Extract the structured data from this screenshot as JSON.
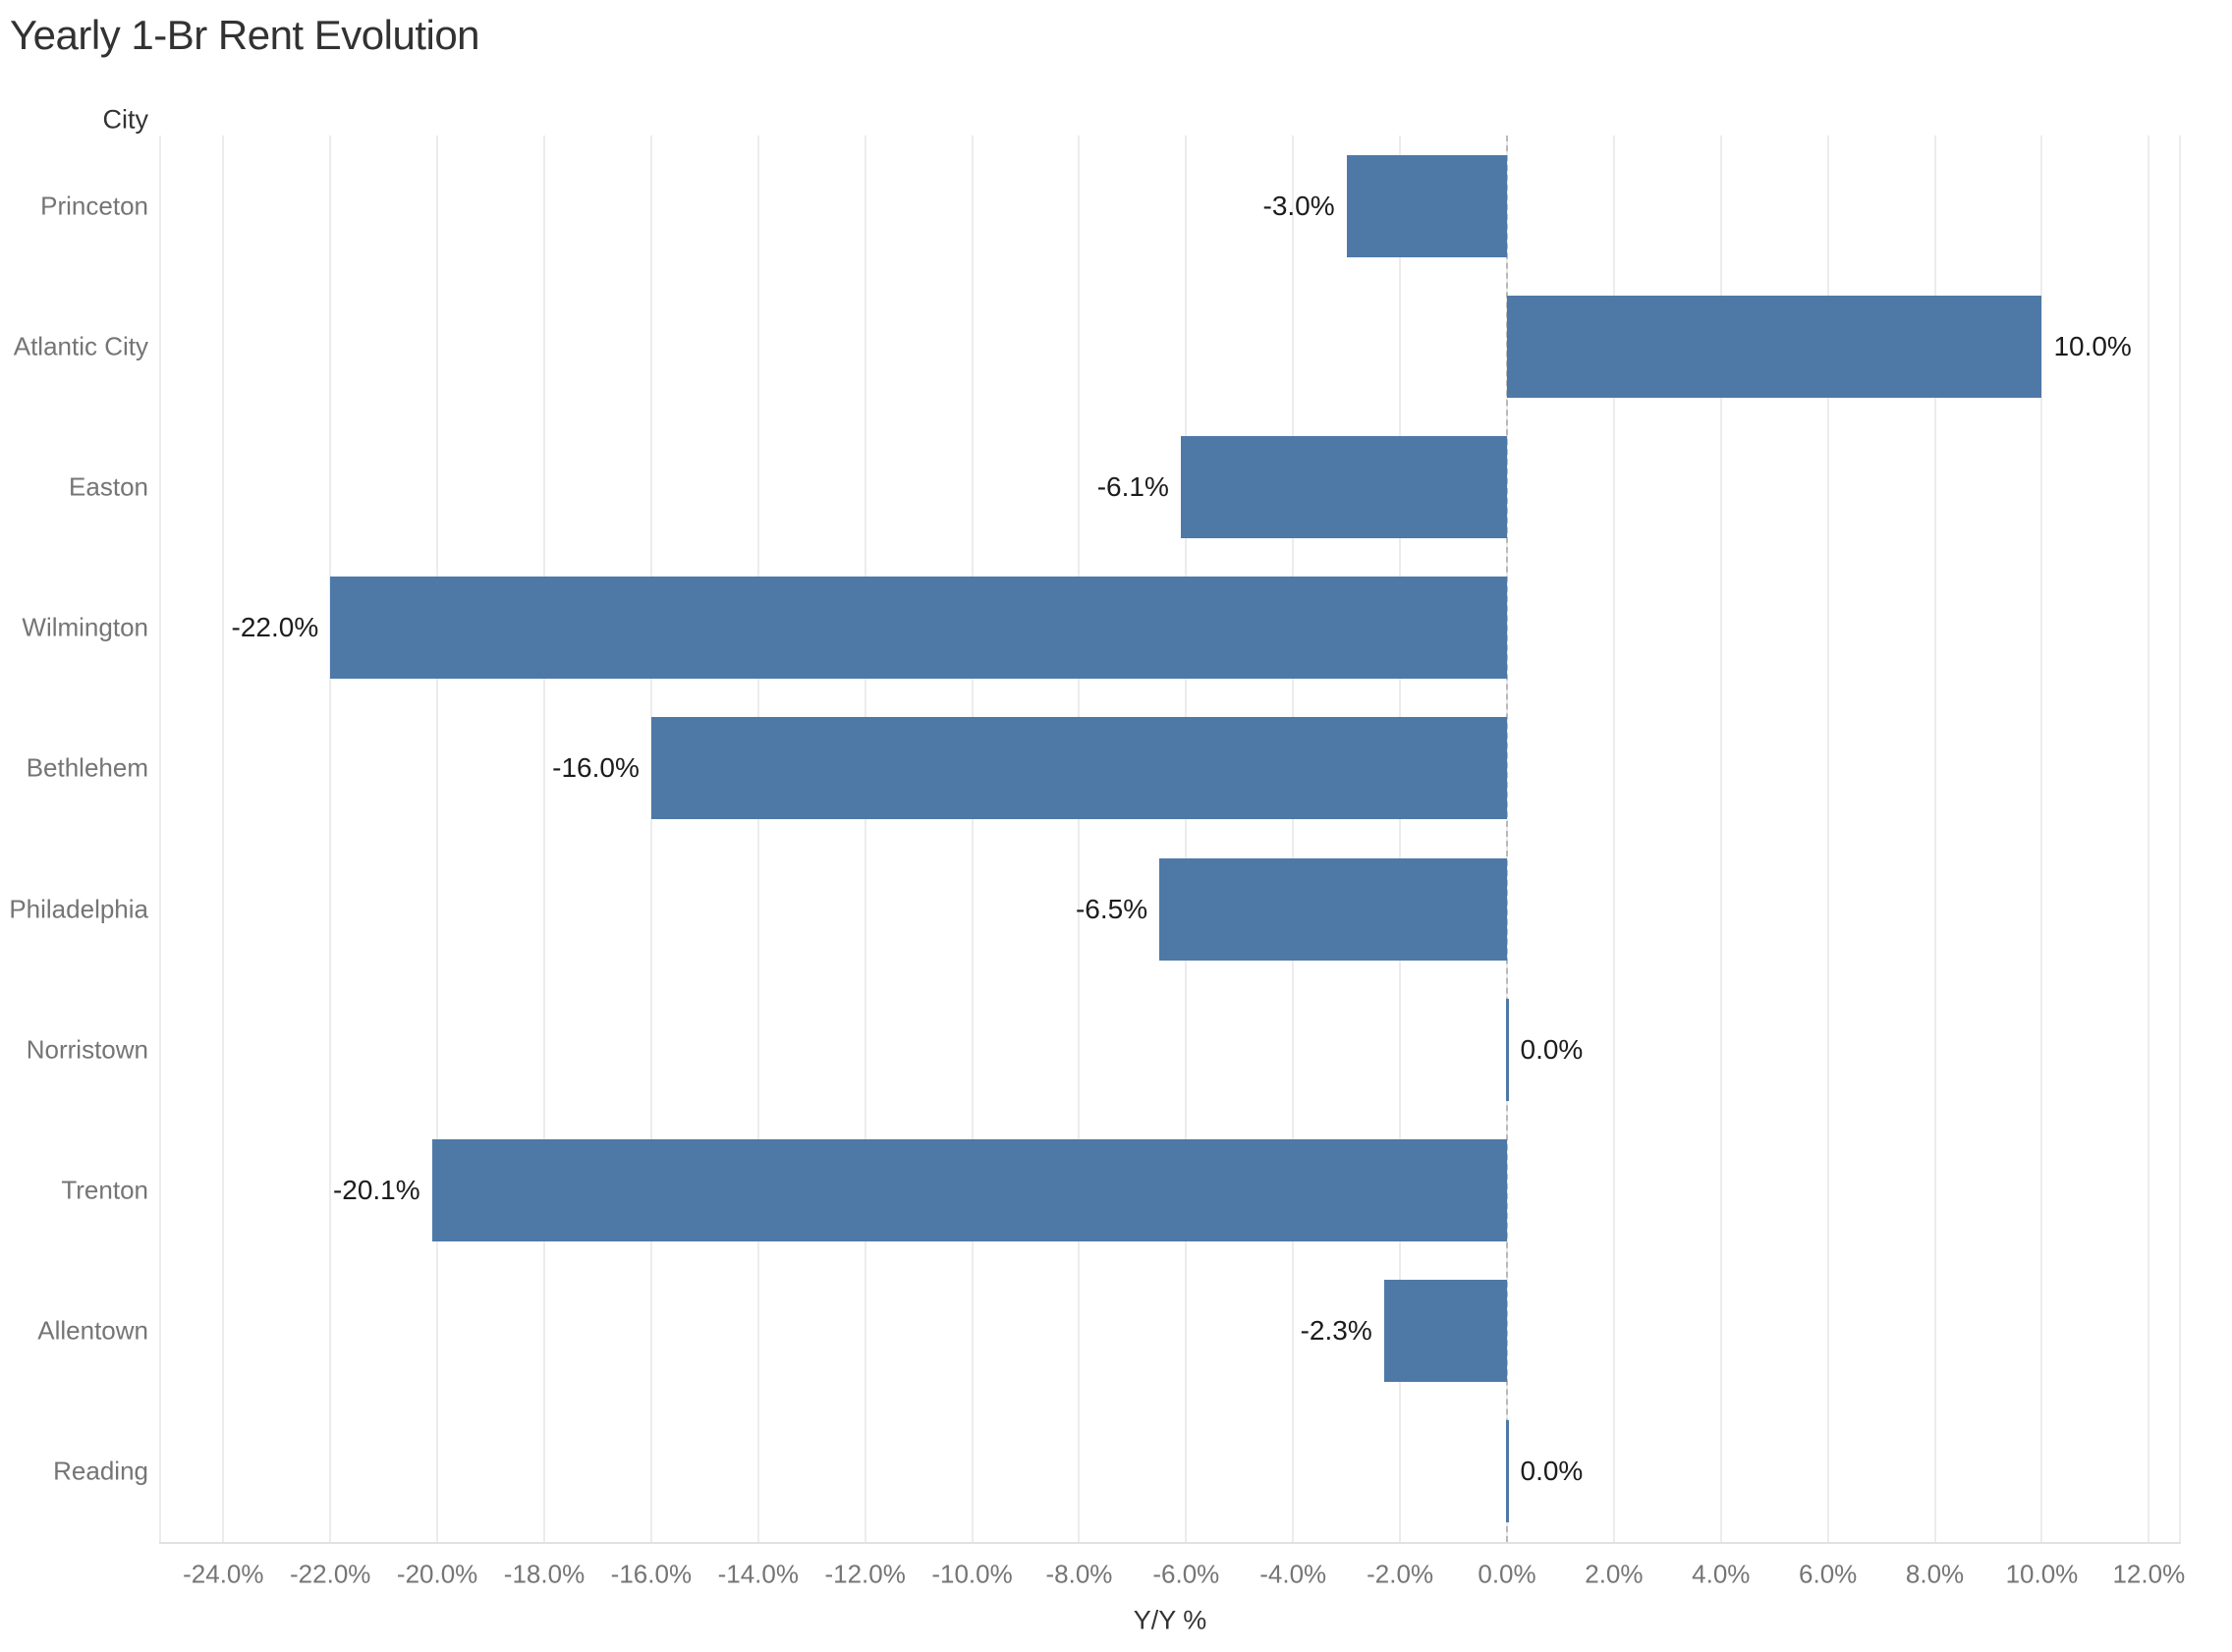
{
  "chart_data": {
    "type": "bar",
    "orientation": "horizontal",
    "title": "Yearly 1-Br Rent Evolution",
    "category_header": "City",
    "xlabel": "Y/Y %",
    "categories": [
      "Princeton",
      "Atlantic City",
      "Easton",
      "Wilmington",
      "Bethlehem",
      "Philadelphia",
      "Norristown",
      "Trenton",
      "Allentown",
      "Reading"
    ],
    "values": [
      -3.0,
      10.0,
      -6.1,
      -22.0,
      -16.0,
      -6.5,
      0.0,
      -20.1,
      -2.3,
      0.0
    ],
    "value_labels": [
      "-3.0%",
      "10.0%",
      "-6.1%",
      "-22.0%",
      "-16.0%",
      "-6.5%",
      "0.0%",
      "-20.1%",
      "-2.3%",
      "0.0%"
    ],
    "xlim": [
      -25.2,
      12.6
    ],
    "xticks": [
      -24,
      -22,
      -20,
      -18,
      -16,
      -14,
      -12,
      -10,
      -8,
      -6,
      -4,
      -2,
      0,
      2,
      4,
      6,
      8,
      10,
      12
    ],
    "xtick_labels": [
      "-24.0%",
      "-22.0%",
      "-20.0%",
      "-18.0%",
      "-16.0%",
      "-14.0%",
      "-12.0%",
      "-10.0%",
      "-8.0%",
      "-6.0%",
      "-4.0%",
      "-2.0%",
      "0.0%",
      "2.0%",
      "4.0%",
      "6.0%",
      "8.0%",
      "10.0%",
      "12.0%"
    ],
    "grid": true,
    "zero_line_style": "dashed",
    "legend": "none",
    "colors": {
      "bar": "#4e79a7",
      "grid": "#ececec",
      "axis_line": "#e1e1e1",
      "zero_line": "#b9b9b9",
      "title_text": "#323232",
      "value_text": "#1c1c1c",
      "muted_text": "#757575",
      "header_text": "#333333"
    }
  }
}
